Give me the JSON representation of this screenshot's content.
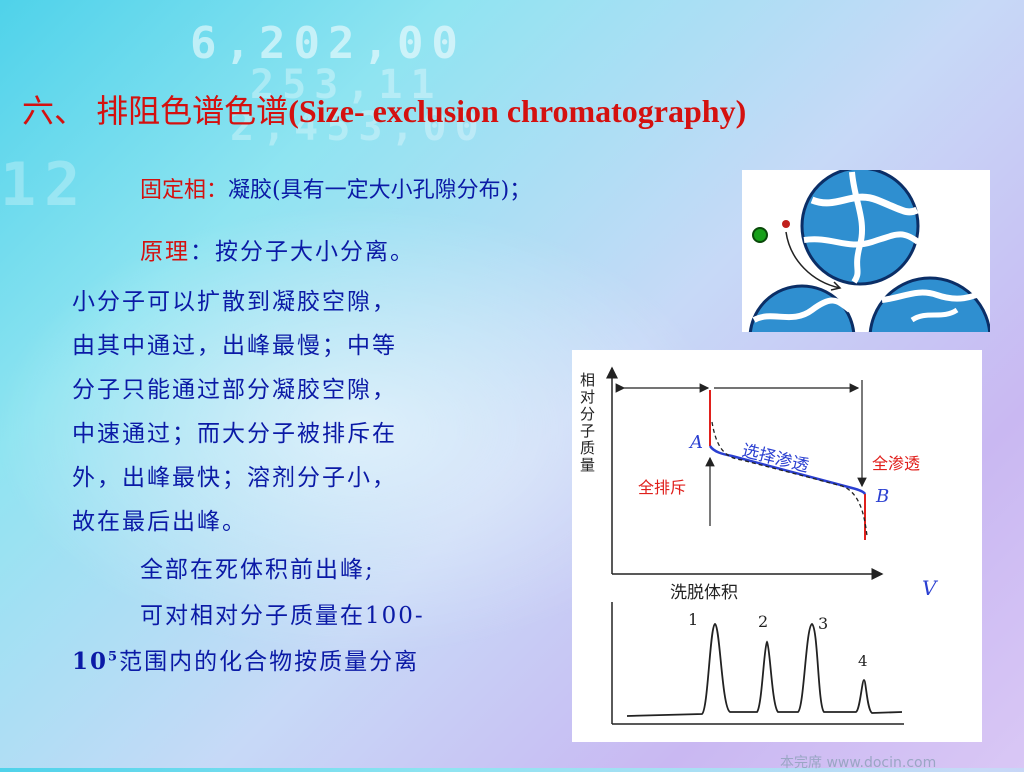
{
  "title": {
    "cn": "六、 排阻色谱色谱",
    "en": "(Size- exclusion chromatography)"
  },
  "stationary": {
    "label": "固定相",
    "colon": "：",
    "text": "凝胶(具有一定大小孔隙分布)；"
  },
  "principle": {
    "label": "原理",
    "text": "：按分子大小分离。",
    "lines": [
      "小分子可以扩散到凝胶空隙，",
      "由其中通过，出峰最慢；中等",
      "分子只能通过部分凝胶空隙，",
      "中速通过；而大分子被排斥在",
      "外，出峰最快；溶剂分子小，",
      "故在最后出峰。"
    ]
  },
  "note1": "全部在死体积前出峰;",
  "note2": {
    "line1": "可对相对分子质量在100-",
    "line2_pre": "10",
    "line2_sup": "5",
    "line2_post": "范围内的化合物按质量分离"
  },
  "diagram": {
    "ylabel": "相对分子质量",
    "xlabel": "洗脱体积",
    "v_label": "V",
    "point_a": "A",
    "point_b": "B",
    "full_exclusion": "全排斥",
    "selective_permeation": "选择渗透",
    "full_permeation": "全渗透",
    "peaks": [
      "1",
      "2",
      "3",
      "4"
    ]
  },
  "colors": {
    "title": "#d4110f",
    "body": "#0b1aa6",
    "gel": "#2f8fd0",
    "red_line": "#e0201c",
    "blue_line": "#2a3fd1"
  },
  "footer": "本完席 www.docin.com"
}
